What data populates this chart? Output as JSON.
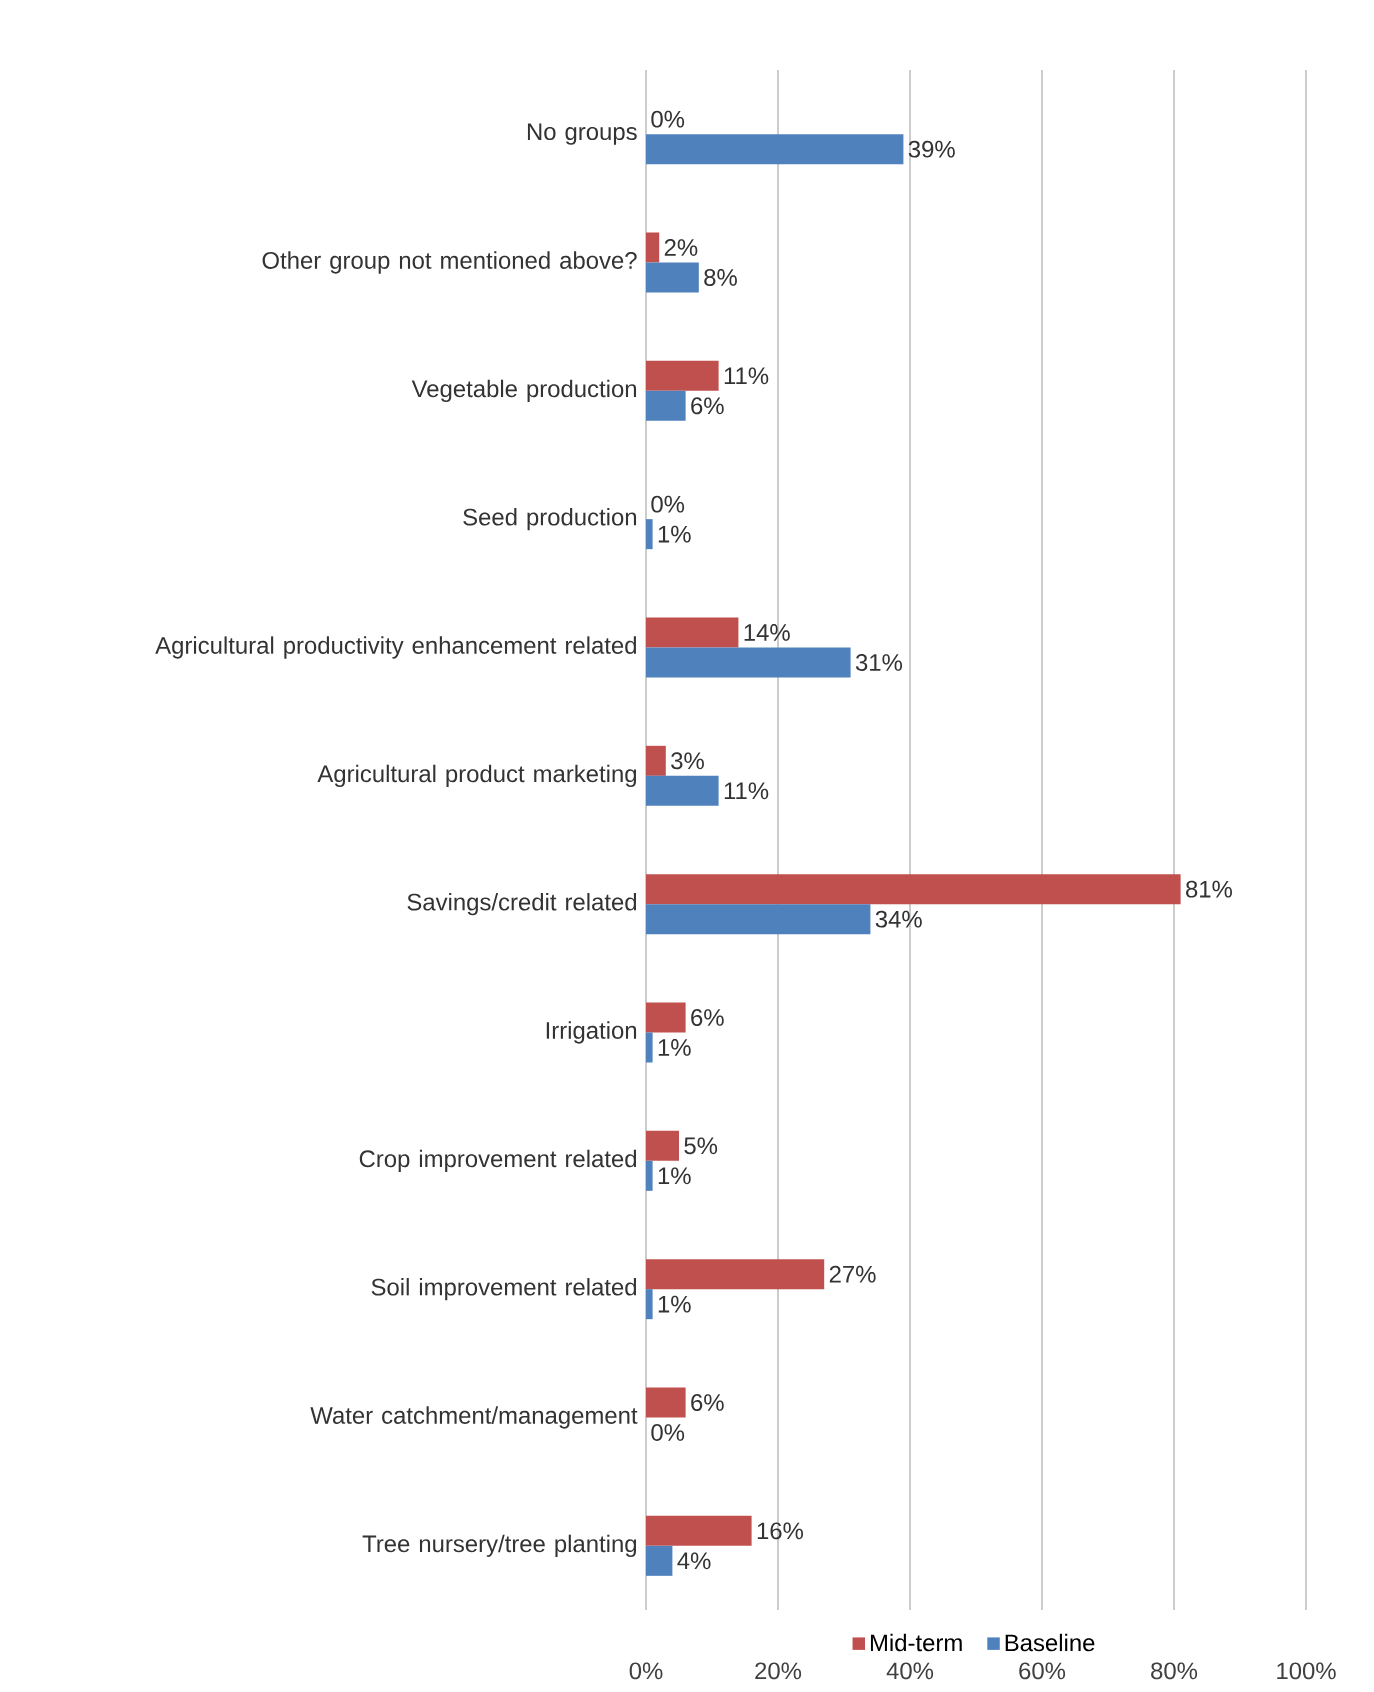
{
  "chart_data": {
    "type": "bar",
    "orientation": "horizontal",
    "categories": [
      "No groups",
      "Other group not mentioned above?",
      "Vegetable production",
      "Seed production",
      "Agricultural productivity enhancement related",
      "Agricultural product marketing",
      "Savings/credit related",
      "Irrigation",
      "Crop improvement related",
      "Soil improvement related",
      "Water catchment/management",
      "Tree nursery/tree planting"
    ],
    "series": [
      {
        "name": "Mid-term",
        "color": "#c0504d",
        "values": [
          0,
          2,
          11,
          0,
          14,
          3,
          81,
          6,
          5,
          27,
          6,
          16
        ],
        "value_labels": [
          "0%",
          "2%",
          "11%",
          "0%",
          "14%",
          "3%",
          "81%",
          "6%",
          "5%",
          "27%",
          "6%",
          "16%"
        ]
      },
      {
        "name": "Baseline",
        "color": "#4f81bd",
        "values": [
          39,
          8,
          6,
          1,
          31,
          11,
          34,
          1,
          1,
          1,
          0,
          4
        ],
        "value_labels": [
          "39%",
          "8%",
          "6%",
          "1%",
          "31%",
          "11%",
          "34%",
          "1%",
          "1%",
          "1%",
          "0%",
          "4%"
        ]
      }
    ],
    "xlim": [
      0,
      100
    ],
    "xticks": [
      {
        "value": 0,
        "label": "0%"
      },
      {
        "value": 20,
        "label": "20%"
      },
      {
        "value": 40,
        "label": "40%"
      },
      {
        "value": 60,
        "label": "60%"
      },
      {
        "value": 80,
        "label": "80%"
      },
      {
        "value": 100,
        "label": "100%"
      }
    ],
    "grid": "x",
    "legend": "bottom"
  }
}
